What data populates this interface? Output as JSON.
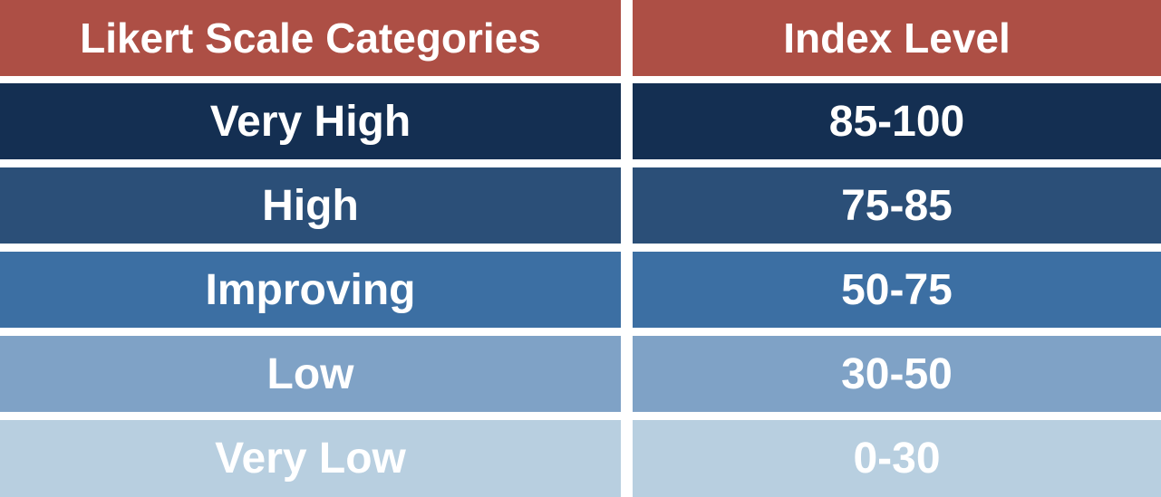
{
  "table": {
    "header": [
      "Likert Scale Categories",
      "Index Level"
    ],
    "rows": [
      [
        "Very High",
        "85-100"
      ],
      [
        "High",
        "75-85"
      ],
      [
        "Improving",
        "50-75"
      ],
      [
        "Low",
        "30-50"
      ],
      [
        "Very Low",
        "0-30"
      ]
    ]
  }
}
